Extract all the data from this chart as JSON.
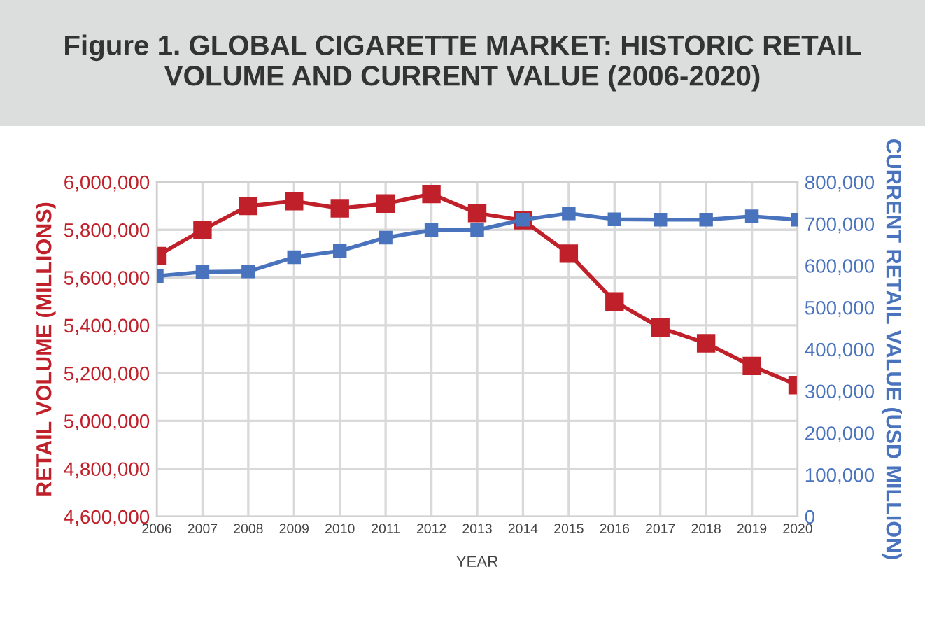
{
  "chart_data": {
    "type": "line",
    "title": "Figure 1. GLOBAL CIGARETTE MARKET: HISTORIC RETAIL VOLUME AND CURRENT VALUE (2006-2020)",
    "xlabel": "YEAR",
    "ylabel": "RETAIL VOLUME (MILLIONS)",
    "y2label": "CURRENT RETAIL VALUE (USD MILLION)",
    "x": [
      2006,
      2007,
      2008,
      2009,
      2010,
      2011,
      2012,
      2013,
      2014,
      2015,
      2016,
      2017,
      2018,
      2019,
      2020
    ],
    "series": [
      {
        "color": "#c0202a",
        "axis": "y",
        "values": [
          5690000,
          5800000,
          5900000,
          5920000,
          5890000,
          5910000,
          5950000,
          5870000,
          5840000,
          5700000,
          5500000,
          5390000,
          5325000,
          5230000,
          5150000
        ]
      },
      {
        "color": "#4a73bd",
        "axis": "y2",
        "values": [
          575000,
          585000,
          586000,
          620000,
          635000,
          667000,
          685000,
          685000,
          710000,
          725000,
          711000,
          710000,
          710000,
          718000,
          710000
        ]
      }
    ],
    "xlim": [
      2006,
      2020
    ],
    "xticks": [
      2006,
      2007,
      2008,
      2009,
      2010,
      2011,
      2012,
      2013,
      2014,
      2015,
      2016,
      2017,
      2018,
      2019,
      2020
    ],
    "ylim": [
      4600000,
      6000000
    ],
    "yticks": [
      {
        "value": 4600000,
        "label": "4,600,000"
      },
      {
        "value": 4800000,
        "label": "4,800,000"
      },
      {
        "value": 5000000,
        "label": "5,000,000"
      },
      {
        "value": 5200000,
        "label": "5,200,000"
      },
      {
        "value": 5400000,
        "label": "5,400,000"
      },
      {
        "value": 5600000,
        "label": "5,600,000"
      },
      {
        "value": 5800000,
        "label": "5,800,000"
      },
      {
        "value": 6000000,
        "label": "6,000,000"
      }
    ],
    "y2lim": [
      0,
      800000
    ],
    "y2ticks": [
      0,
      {
        "value": 100000,
        "label": "100,000"
      },
      {
        "value": 200000,
        "label": "200,000"
      },
      {
        "value": 300000,
        "label": "300,000"
      },
      {
        "value": 400000,
        "label": "400,000"
      },
      {
        "value": 500000,
        "label": "500,000"
      },
      {
        "value": 600000,
        "label": "600,000"
      },
      {
        "value": 700000,
        "label": "700,000"
      },
      {
        "value": 800000,
        "label": "800,000"
      }
    ],
    "grid": true,
    "marker": "square",
    "line_style": "solid",
    "legend": false
  }
}
